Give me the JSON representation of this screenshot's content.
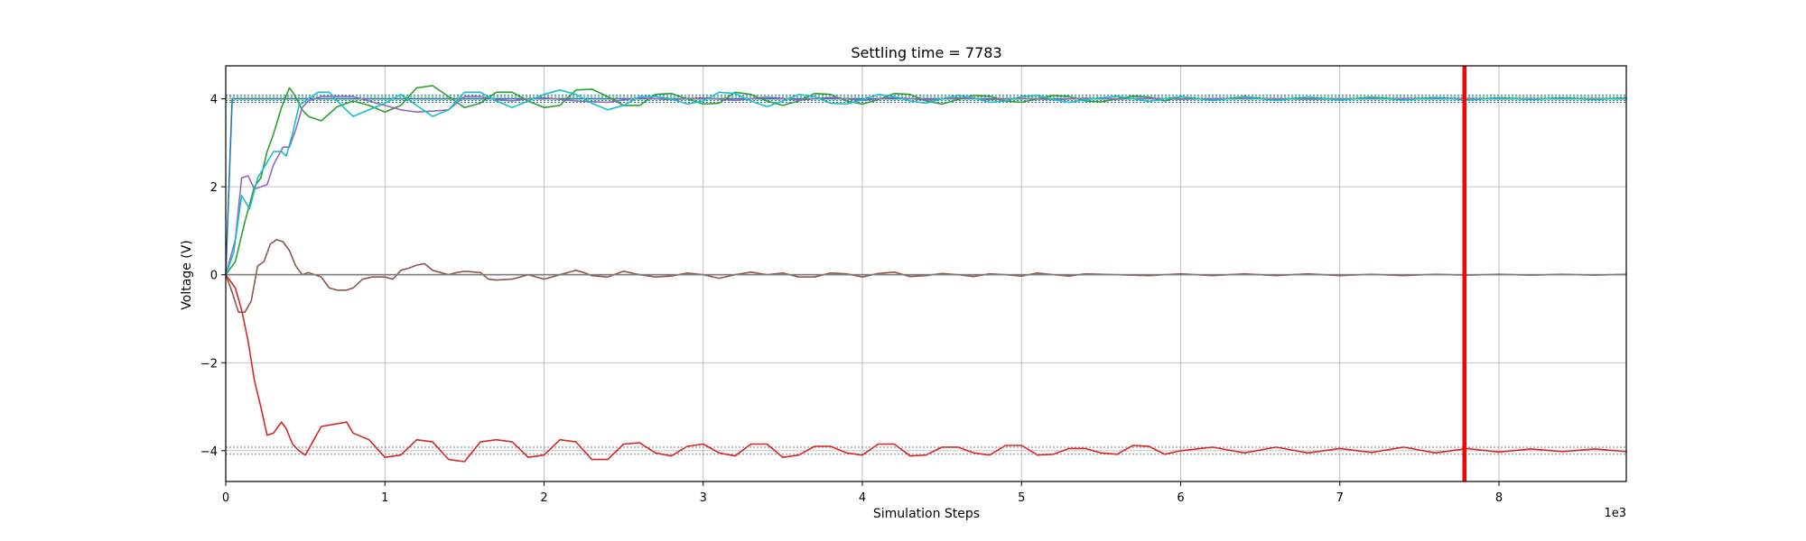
{
  "chart_data": {
    "type": "line",
    "title": "Settling time = 7783",
    "xlabel": "Simulation Steps",
    "ylabel": "Voltage (V)",
    "x_offset_label": "1e3",
    "xlim": [
      0,
      8800
    ],
    "ylim": [
      -4.7,
      4.75
    ],
    "x_ticks": [
      0,
      1000,
      2000,
      3000,
      4000,
      5000,
      6000,
      7000,
      8000
    ],
    "x_tick_labels": [
      "0",
      "1",
      "2",
      "3",
      "4",
      "5",
      "6",
      "7",
      "8"
    ],
    "y_ticks": [
      -4,
      -2,
      0,
      2,
      4
    ],
    "y_tick_labels": [
      "−4",
      "−2",
      "0",
      "2",
      "4"
    ],
    "grid": true,
    "settling_time": 7783,
    "settling_line_color": "#ff0000",
    "reference_lines": [
      {
        "y": 4.08,
        "color": "#1f77b4",
        "style": "dotted"
      },
      {
        "y": 3.92,
        "color": "#1f77b4",
        "style": "dotted"
      },
      {
        "y": 4.04,
        "color": "#2ca02c",
        "style": "dotted"
      },
      {
        "y": 3.96,
        "color": "#2ca02c",
        "style": "dotted"
      },
      {
        "y": 0.0,
        "color": "#7f7f7f",
        "style": "dotted"
      },
      {
        "y": -3.92,
        "color": "#7f7f7f",
        "style": "dotted"
      },
      {
        "y": -4.08,
        "color": "#7f7f7f",
        "style": "dotted"
      }
    ],
    "series": [
      {
        "color": "#1f77b4",
        "x": [
          0,
          40,
          60,
          8800
        ],
        "y": [
          0,
          4.0,
          4.0,
          4.0
        ]
      },
      {
        "color": "#ff7f0e",
        "x": [
          0,
          8800
        ],
        "y": [
          0,
          0
        ]
      },
      {
        "color": "#2ca02c",
        "x": [
          0,
          60,
          120,
          180,
          220,
          260,
          300,
          350,
          400,
          430,
          480,
          520,
          600,
          700,
          800,
          900,
          1000,
          1100,
          1200,
          1300,
          1400,
          1500,
          1600,
          1700,
          1800,
          1900,
          2000,
          2100,
          2200,
          2300,
          2400,
          2500,
          2600,
          2700,
          2800,
          2900,
          3000,
          3100,
          3200,
          3300,
          3400,
          3500,
          3600,
          3700,
          3800,
          3900,
          4000,
          4100,
          4200,
          4300,
          4400,
          4500,
          4600,
          4700,
          4800,
          4900,
          5000,
          5100,
          5200,
          5300,
          5400,
          5500,
          5600,
          5700,
          5800,
          5900,
          6000,
          6200,
          6400,
          6600,
          6800,
          7000,
          7200,
          7400,
          7600,
          7800,
          8000,
          8200,
          8400,
          8600,
          8800
        ],
        "y": [
          0,
          0.3,
          1.2,
          2.0,
          2.2,
          2.8,
          3.2,
          3.8,
          4.25,
          4.1,
          3.75,
          3.6,
          3.5,
          3.82,
          3.95,
          3.85,
          3.7,
          3.85,
          4.25,
          4.3,
          4.05,
          3.8,
          3.9,
          4.15,
          4.15,
          3.95,
          3.8,
          3.85,
          4.2,
          4.22,
          4.05,
          3.85,
          3.85,
          4.1,
          4.12,
          4.0,
          3.88,
          3.9,
          4.15,
          4.1,
          3.95,
          3.85,
          3.95,
          4.12,
          4.1,
          3.95,
          3.88,
          3.98,
          4.12,
          4.1,
          3.95,
          3.88,
          3.98,
          4.08,
          4.06,
          3.95,
          3.92,
          4.0,
          4.08,
          4.05,
          3.95,
          3.93,
          4.0,
          4.06,
          4.04,
          3.95,
          4.05,
          3.96,
          4.05,
          3.97,
          4.04,
          3.97,
          4.04,
          3.98,
          4.03,
          3.98,
          4.02,
          3.99,
          4.02,
          3.99,
          4.02
        ]
      },
      {
        "color": "#d62728",
        "x": [
          0,
          60,
          100,
          140,
          180,
          220,
          260,
          300,
          350,
          380,
          420,
          460,
          500,
          600,
          680,
          760,
          800,
          900,
          1000,
          1100,
          1200,
          1300,
          1400,
          1500,
          1600,
          1700,
          1800,
          1900,
          2000,
          2100,
          2200,
          2300,
          2400,
          2500,
          2600,
          2700,
          2800,
          2900,
          3000,
          3100,
          3200,
          3300,
          3400,
          3500,
          3600,
          3700,
          3800,
          3900,
          4000,
          4100,
          4200,
          4300,
          4400,
          4500,
          4600,
          4700,
          4800,
          4900,
          5000,
          5100,
          5200,
          5300,
          5400,
          5500,
          5600,
          5700,
          5800,
          5900,
          6000,
          6200,
          6400,
          6600,
          6800,
          7000,
          7200,
          7400,
          7600,
          7800,
          8000,
          8200,
          8400,
          8600,
          8800
        ],
        "y": [
          0,
          -0.3,
          -0.8,
          -1.5,
          -2.4,
          -3.0,
          -3.65,
          -3.6,
          -3.35,
          -3.5,
          -3.85,
          -4.0,
          -4.1,
          -3.45,
          -3.4,
          -3.35,
          -3.6,
          -3.75,
          -4.15,
          -4.1,
          -3.75,
          -3.8,
          -4.2,
          -4.25,
          -3.8,
          -3.75,
          -3.8,
          -4.15,
          -4.1,
          -3.75,
          -3.8,
          -4.2,
          -4.2,
          -3.85,
          -3.82,
          -4.05,
          -4.12,
          -3.9,
          -3.85,
          -4.05,
          -4.12,
          -3.85,
          -3.85,
          -4.15,
          -4.1,
          -3.9,
          -3.9,
          -4.05,
          -4.1,
          -3.85,
          -3.85,
          -4.12,
          -4.1,
          -3.92,
          -3.92,
          -4.05,
          -4.1,
          -3.88,
          -3.88,
          -4.1,
          -4.08,
          -3.95,
          -3.95,
          -4.05,
          -4.08,
          -3.88,
          -3.9,
          -4.08,
          -4.0,
          -3.92,
          -4.05,
          -3.92,
          -4.05,
          -3.95,
          -4.04,
          -3.92,
          -4.05,
          -3.95,
          -4.03,
          -3.96,
          -4.02,
          -3.96,
          -4.02
        ]
      },
      {
        "color": "#9467bd",
        "x": [
          0,
          60,
          100,
          140,
          180,
          220,
          260,
          300,
          360,
          400,
          440,
          480,
          520,
          600,
          700,
          800,
          900,
          1000,
          1100,
          1200,
          1300,
          1400,
          1500,
          1600,
          1700,
          1800,
          1900,
          2000,
          2200,
          2400,
          2600,
          2800,
          3000,
          3200,
          3400,
          3600,
          3800,
          4000,
          4200,
          4400,
          4600,
          4800,
          5000,
          5200,
          5400,
          5600,
          5800,
          6000,
          6400,
          6800,
          7200,
          7600,
          8000,
          8400,
          8800
        ],
        "y": [
          0,
          0.8,
          2.2,
          2.25,
          1.95,
          2.0,
          2.05,
          2.5,
          2.9,
          2.9,
          3.3,
          3.8,
          3.95,
          4.05,
          4.05,
          4.05,
          3.95,
          3.85,
          3.75,
          3.7,
          3.72,
          3.75,
          4.05,
          4.05,
          3.98,
          3.95,
          4.0,
          4.02,
          3.95,
          3.92,
          4.02,
          3.98,
          4.02,
          3.96,
          4.04,
          3.97,
          4.03,
          3.96,
          4.03,
          3.97,
          4.02,
          3.98,
          4.01,
          3.98,
          4.01,
          3.99,
          4.01,
          3.99,
          4.01,
          3.99,
          4.0,
          4.01,
          4.0,
          4.0,
          4.0
        ]
      },
      {
        "color": "#8c564b",
        "x": [
          0,
          40,
          80,
          120,
          160,
          200,
          240,
          280,
          320,
          360,
          400,
          440,
          480,
          520,
          560,
          600,
          650,
          700,
          760,
          800,
          860,
          920,
          1000,
          1050,
          1100,
          1150,
          1200,
          1250,
          1300,
          1350,
          1400,
          1450,
          1500,
          1600,
          1650,
          1700,
          1800,
          1900,
          2000,
          2100,
          2200,
          2250,
          2300,
          2400,
          2500,
          2600,
          2700,
          2800,
          2900,
          3000,
          3100,
          3200,
          3300,
          3400,
          3500,
          3600,
          3700,
          3800,
          3900,
          4000,
          4100,
          4200,
          4300,
          4400,
          4500,
          4600,
          4700,
          4800,
          4900,
          5000,
          5100,
          5200,
          5300,
          5400,
          5600,
          5800,
          6000,
          6200,
          6400,
          6600,
          6800,
          7000,
          7200,
          7400,
          7600,
          7800,
          8000,
          8200,
          8400,
          8600,
          8800
        ],
        "y": [
          0,
          -0.4,
          -0.85,
          -0.85,
          -0.6,
          0.2,
          0.3,
          0.7,
          0.8,
          0.75,
          0.55,
          0.2,
          0.0,
          0.05,
          0.0,
          -0.05,
          -0.3,
          -0.35,
          -0.35,
          -0.3,
          -0.1,
          -0.05,
          -0.05,
          -0.1,
          0.1,
          0.15,
          0.22,
          0.25,
          0.1,
          0.05,
          0.0,
          0.05,
          0.08,
          0.05,
          -0.1,
          -0.12,
          -0.1,
          0.0,
          -0.1,
          0.0,
          0.1,
          0.05,
          -0.02,
          -0.05,
          0.08,
          0.0,
          -0.05,
          -0.03,
          0.04,
          0.0,
          -0.08,
          0.0,
          0.06,
          0.0,
          0.04,
          -0.05,
          -0.05,
          0.04,
          0.02,
          -0.05,
          0.03,
          0.06,
          -0.04,
          -0.02,
          0.03,
          0.0,
          -0.04,
          0.02,
          0.0,
          -0.03,
          0.04,
          0.0,
          -0.03,
          0.02,
          0.0,
          -0.02,
          0.02,
          -0.02,
          0.02,
          -0.02,
          0.02,
          -0.02,
          0.01,
          -0.02,
          0.01,
          -0.01,
          0.01,
          -0.01,
          0.01,
          -0.01,
          0.01
        ]
      },
      {
        "color": "#17becf",
        "x": [
          0,
          50,
          100,
          150,
          200,
          250,
          300,
          350,
          380,
          420,
          460,
          520,
          580,
          650,
          700,
          800,
          900,
          1000,
          1100,
          1200,
          1300,
          1400,
          1500,
          1600,
          1700,
          1800,
          1900,
          2000,
          2100,
          2200,
          2300,
          2400,
          2500,
          2600,
          2700,
          2800,
          2900,
          3000,
          3100,
          3200,
          3300,
          3400,
          3500,
          3600,
          3700,
          3800,
          3900,
          4000,
          4100,
          4200,
          4300,
          4400,
          4500,
          4600,
          4700,
          4800,
          4900,
          5000,
          5100,
          5200,
          5300,
          5400,
          5600,
          5800,
          6000,
          6200,
          6400,
          6600,
          6800,
          7000,
          7200,
          7400,
          7600,
          7800,
          8000,
          8200,
          8400,
          8600,
          8800
        ],
        "y": [
          0,
          0.5,
          1.8,
          1.5,
          2.2,
          2.5,
          2.8,
          2.8,
          2.7,
          3.2,
          3.85,
          4.0,
          4.15,
          4.15,
          3.95,
          3.6,
          3.75,
          3.9,
          4.1,
          3.85,
          3.6,
          3.75,
          4.15,
          4.15,
          3.95,
          3.8,
          3.95,
          4.1,
          4.2,
          4.1,
          3.9,
          3.75,
          3.85,
          4.05,
          4.05,
          4.0,
          3.88,
          3.95,
          4.15,
          4.12,
          3.95,
          3.82,
          3.95,
          4.1,
          4.05,
          3.9,
          3.88,
          3.98,
          4.1,
          4.05,
          3.95,
          3.9,
          4.0,
          4.08,
          4.02,
          3.92,
          3.95,
          4.05,
          4.08,
          3.98,
          3.92,
          3.98,
          4.06,
          3.94,
          4.05,
          3.96,
          4.04,
          3.96,
          4.04,
          3.97,
          4.03,
          3.97,
          4.03,
          3.97,
          4.02,
          3.98,
          4.02,
          3.98,
          4.02
        ]
      },
      {
        "color": "#7f7f7f",
        "x": [
          0,
          8800
        ],
        "y": [
          0,
          0
        ]
      }
    ]
  }
}
